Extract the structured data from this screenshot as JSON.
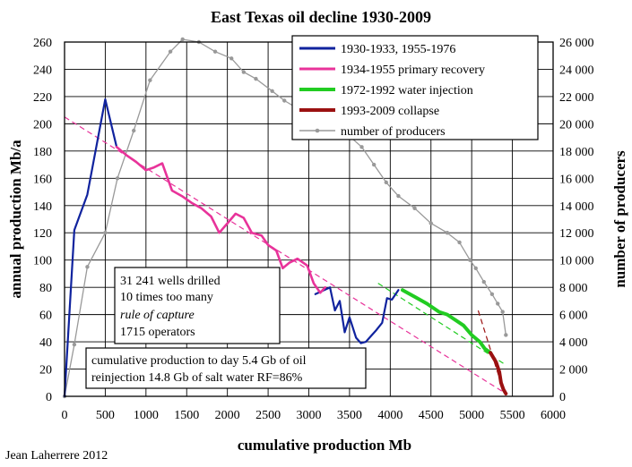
{
  "chart_data": {
    "type": "line",
    "title": "East Texas oil decline 1930-2009",
    "xlabel": "cumulative production Mb",
    "ylabel": "annual production Mb/a",
    "y2label": "number of producers",
    "xlim": [
      0,
      6000
    ],
    "ylim": [
      0,
      260
    ],
    "y2lim": [
      0,
      26000
    ],
    "x_ticks": [
      "0",
      "500",
      "1000",
      "1500",
      "2000",
      "2500",
      "3000",
      "3500",
      "4000",
      "4500",
      "5000",
      "5500",
      "6000"
    ],
    "y_ticks": [
      "0",
      "20",
      "40",
      "60",
      "80",
      "100",
      "120",
      "140",
      "160",
      "180",
      "200",
      "220",
      "240",
      "260"
    ],
    "y2_ticks": [
      "0",
      "2 000",
      "4 000",
      "6 000",
      "8 000",
      "10 000",
      "12 000",
      "14 000",
      "16 000",
      "18 000",
      "20 000",
      "22 000",
      "24 000",
      "26 000"
    ],
    "grid": true,
    "legend_position": "top-right",
    "series": [
      {
        "name": "1930-1933, 1955-1976",
        "color": "#10239e",
        "axis": "left",
        "segments": [
          [
            [
              0,
              0
            ],
            [
              120,
              122
            ],
            [
              280,
              148
            ],
            [
              500,
              218
            ],
            [
              640,
              183
            ]
          ],
          [
            [
              3080,
              75
            ],
            [
              3260,
              80
            ],
            [
              3320,
              63
            ],
            [
              3380,
              70
            ],
            [
              3440,
              47
            ],
            [
              3500,
              58
            ],
            [
              3580,
              43
            ],
            [
              3640,
              39
            ],
            [
              3700,
              40
            ],
            [
              3760,
              44
            ],
            [
              3820,
              48
            ],
            [
              3900,
              54
            ],
            [
              3960,
              72
            ],
            [
              4020,
              71
            ],
            [
              4100,
              78
            ]
          ]
        ]
      },
      {
        "name": "1934-1955 primary recovery",
        "color": "#e8339a",
        "axis": "left",
        "segments": [
          [
            [
              640,
              183
            ],
            [
              760,
              177
            ],
            [
              880,
              172
            ],
            [
              1000,
              166
            ],
            [
              1100,
              168
            ],
            [
              1200,
              171
            ],
            [
              1320,
              151
            ],
            [
              1440,
              147
            ],
            [
              1560,
              142
            ],
            [
              1680,
              138
            ],
            [
              1800,
              132
            ],
            [
              1900,
              120
            ],
            [
              2000,
              127
            ],
            [
              2100,
              134
            ],
            [
              2200,
              131
            ],
            [
              2300,
              120
            ],
            [
              2420,
              118
            ],
            [
              2500,
              111
            ],
            [
              2600,
              107
            ],
            [
              2680,
              94
            ],
            [
              2760,
              98
            ],
            [
              2860,
              101
            ],
            [
              2980,
              96
            ],
            [
              3060,
              83
            ],
            [
              3140,
              76
            ],
            [
              3200,
              80
            ]
          ]
        ]
      },
      {
        "name": "1972-1992 water injection",
        "color": "#22cc22",
        "axis": "left",
        "segments": [
          [
            [
              4150,
              78
            ],
            [
              4300,
              73
            ],
            [
              4450,
              68
            ],
            [
              4600,
              62
            ],
            [
              4700,
              60
            ],
            [
              4800,
              56
            ],
            [
              4900,
              52
            ],
            [
              5000,
              45
            ],
            [
              5100,
              40
            ],
            [
              5160,
              35
            ],
            [
              5230,
              32
            ]
          ]
        ]
      },
      {
        "name": "1993-2009 collapse",
        "color": "#9b1111",
        "axis": "left",
        "segments": [
          [
            [
              5230,
              32
            ],
            [
              5300,
              25
            ],
            [
              5340,
              18
            ],
            [
              5360,
              10
            ],
            [
              5390,
              5
            ],
            [
              5420,
              2
            ]
          ]
        ]
      },
      {
        "name": "number of producers",
        "color": "#999999",
        "axis": "right",
        "segments": [
          [
            [
              0,
              0
            ],
            [
              120,
              3800
            ],
            [
              280,
              9500
            ],
            [
              500,
              12000
            ],
            [
              650,
              16000
            ],
            [
              850,
              19500
            ],
            [
              1050,
              23200
            ],
            [
              1300,
              25300
            ],
            [
              1450,
              26200
            ],
            [
              1650,
              26000
            ],
            [
              1850,
              25300
            ],
            [
              2050,
              24800
            ],
            [
              2200,
              23800
            ],
            [
              2350,
              23300
            ],
            [
              2550,
              22400
            ],
            [
              2700,
              21700
            ],
            [
              2900,
              21000
            ],
            [
              3100,
              20300
            ],
            [
              3300,
              19700
            ],
            [
              3480,
              19200
            ],
            [
              3650,
              18300
            ],
            [
              3800,
              17000
            ],
            [
              3950,
              15700
            ],
            [
              4100,
              14700
            ],
            [
              4300,
              13800
            ],
            [
              4500,
              12700
            ],
            [
              4700,
              12000
            ],
            [
              4850,
              11300
            ],
            [
              4980,
              10000
            ],
            [
              5050,
              9400
            ],
            [
              5150,
              8400
            ],
            [
              5250,
              7500
            ],
            [
              5320,
              6800
            ],
            [
              5380,
              6200
            ],
            [
              5420,
              4500
            ]
          ]
        ]
      }
    ],
    "trendlines": [
      {
        "name": "primary-trend",
        "color": "#e8339a",
        "points": [
          [
            0,
            205
          ],
          [
            5420,
            2
          ]
        ]
      },
      {
        "name": "injection-trend",
        "color": "#22cc22",
        "points": [
          [
            3850,
            83
          ],
          [
            5420,
            23
          ]
        ]
      },
      {
        "name": "collapse-trend",
        "color": "#9b1111",
        "points": [
          [
            5080,
            63
          ],
          [
            5400,
            2
          ]
        ]
      }
    ],
    "annotations": {
      "wells_box": [
        "31 241 wells drilled",
        "10 times too many",
        "rule of capture",
        "1715 operators"
      ],
      "production_box": [
        "cumulative production to day 5.4 Gb of oil",
        "reinjection 14.8 Gb of salt water RF=86%"
      ]
    },
    "credit": "Jean Laherrere 2012"
  }
}
